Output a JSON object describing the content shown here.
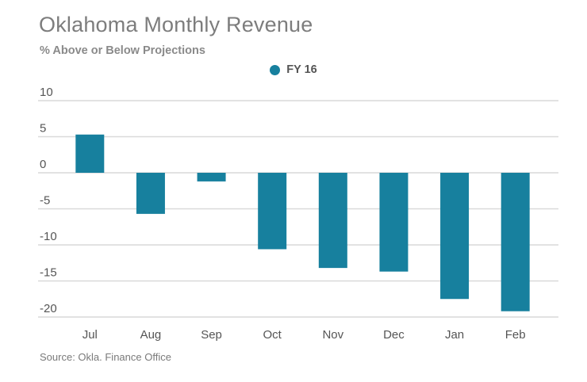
{
  "chart": {
    "title": "Oklahoma Monthly Revenue",
    "subtitle": "% Above or Below Projections",
    "legend": {
      "label": "FY 16"
    },
    "source": "Source: Okla. Finance Office"
  },
  "chart_data": {
    "type": "bar",
    "title": "Oklahoma Monthly Revenue",
    "subtitle": "% Above or Below Projections",
    "categories": [
      "Jul",
      "Aug",
      "Sep",
      "Oct",
      "Nov",
      "Dec",
      "Jan",
      "Feb"
    ],
    "series": [
      {
        "name": "FY 16",
        "values": [
          5.3,
          -5.7,
          -1.2,
          -10.6,
          -13.2,
          -13.7,
          -17.5,
          -19.2
        ]
      }
    ],
    "ylim": [
      -20,
      10
    ],
    "yticks": [
      10,
      5,
      0,
      -5,
      -10,
      -15,
      -20
    ],
    "grid": true,
    "legend_position": "top-center",
    "bar_color": "#17809e",
    "grid_color": "#d9d9d9",
    "tick_label_color": "#555555"
  }
}
